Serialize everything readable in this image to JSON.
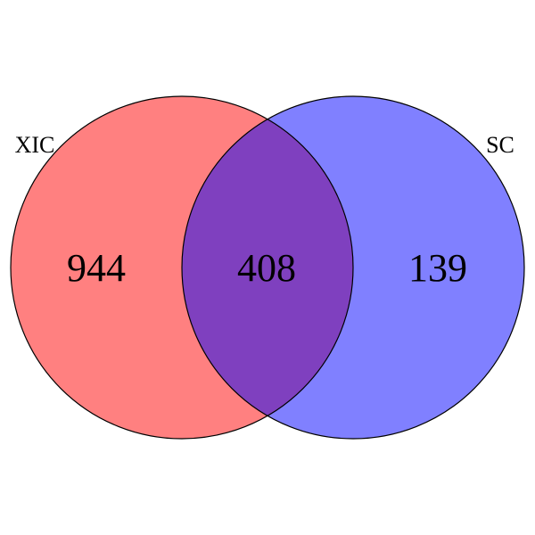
{
  "venn": {
    "sets": [
      {
        "label": "XIC",
        "color": "#ff8080"
      },
      {
        "label": "SC",
        "color": "#8080ff"
      }
    ],
    "overlap_color": "#7f40bf",
    "outline_color": "#000000",
    "counts": {
      "left_only": "944",
      "both": "408",
      "right_only": "139"
    }
  }
}
